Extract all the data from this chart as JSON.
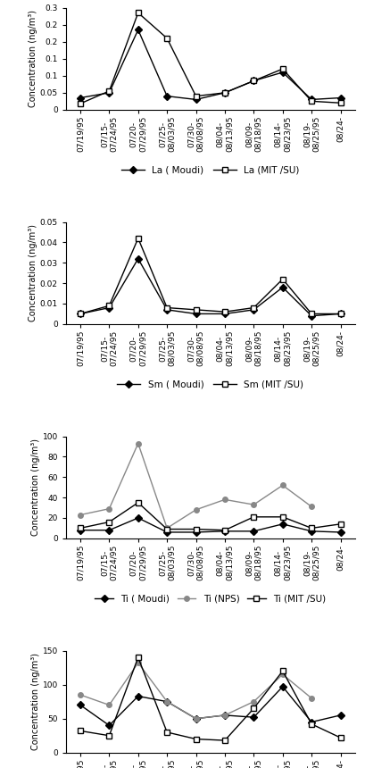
{
  "xtick_labels": [
    "07/19/95",
    "07/15-",
    "07/24/95",
    "07/20-",
    "07/29/95-",
    "07/25-",
    "08/03/95",
    "07/30-",
    "08/08/95",
    "08/04-",
    "08/13/95",
    "08/09-",
    "08/18/95",
    "08/14-",
    "08/23/95",
    "08/19-",
    "08/25/95",
    "08/24-"
  ],
  "xtick_labels_paired": [
    "07/19/95",
    "07/15-\n07/24/95",
    "07/20-\n07/29/95",
    "07/25-\n08/03/95",
    "07/30-\n08/08/95",
    "08/04-\n08/13/95",
    "08/09-\n08/18/95",
    "08/14-\n08/23/95",
    "08/19-\n08/25/95",
    "08/24-"
  ],
  "La_moudi": [
    0.035,
    0.05,
    0.235,
    0.04,
    0.03,
    0.05,
    0.085,
    0.11,
    0.03,
    0.035
  ],
  "La_mitsu": [
    0.018,
    0.055,
    0.285,
    0.21,
    0.04,
    0.05,
    0.085,
    0.12,
    0.025,
    0.02
  ],
  "Sm_moudi": [
    0.005,
    0.008,
    0.032,
    0.007,
    0.005,
    0.005,
    0.007,
    0.018,
    0.004,
    0.005
  ],
  "Sm_mitsu": [
    0.005,
    0.009,
    0.042,
    0.008,
    0.007,
    0.006,
    0.008,
    0.022,
    0.005,
    0.005
  ],
  "Ti_moudi": [
    8,
    8,
    20,
    6,
    6,
    7,
    7,
    14,
    7,
    6
  ],
  "Ti_nps": [
    23,
    29,
    93,
    10,
    28,
    38,
    33,
    52,
    31,
    null
  ],
  "Ti_mitsu": [
    10,
    16,
    35,
    9,
    9,
    8,
    21,
    21,
    10,
    14
  ],
  "K_moudi": [
    70,
    40,
    83,
    75,
    50,
    55,
    52,
    97,
    45,
    55
  ],
  "K_nps": [
    85,
    70,
    132,
    75,
    50,
    55,
    75,
    115,
    80,
    null
  ],
  "K_mitsu": [
    32,
    25,
    140,
    30,
    20,
    18,
    65,
    120,
    42,
    22
  ],
  "n_points": 10,
  "background_color": "#ffffff",
  "line_color_moudi": "#000000",
  "line_color_nps": "#888888",
  "line_color_mitsu": "#000000",
  "marker_moudi": "D",
  "marker_nps": "o",
  "marker_mitsu": "s",
  "ylabel": "Concentration (ng/m³)",
  "La_ylim": [
    0,
    0.3
  ],
  "La_yticks": [
    0,
    0.05,
    0.1,
    0.15,
    0.2,
    0.25,
    0.3
  ],
  "Sm_ylim": [
    0,
    0.05
  ],
  "Sm_yticks": [
    0,
    0.01,
    0.02,
    0.03,
    0.04,
    0.05
  ],
  "Ti_ylim": [
    0,
    100
  ],
  "Ti_yticks": [
    0,
    20,
    40,
    60,
    80,
    100
  ],
  "K_ylim": [
    0,
    150
  ],
  "K_yticks": [
    0,
    50,
    100,
    150
  ]
}
